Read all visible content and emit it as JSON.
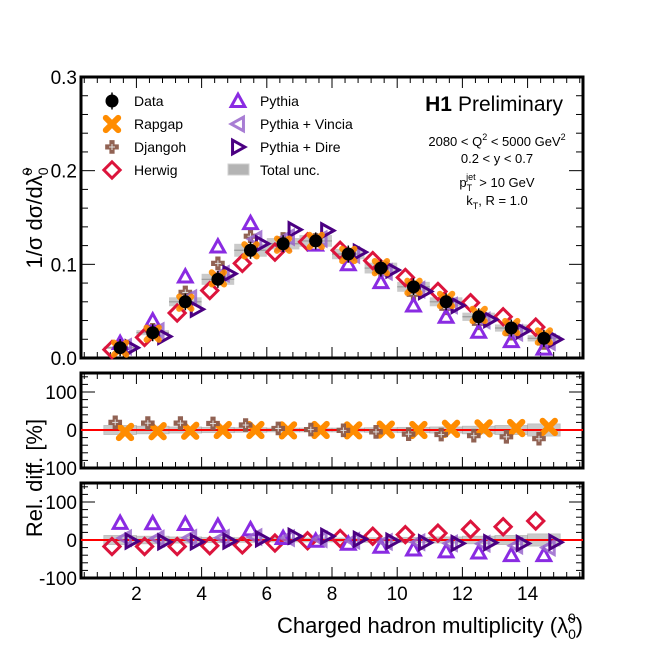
{
  "chart_data": [
    {
      "panel": "main",
      "type": "scatter",
      "ylabel": "1/σ dσ/dλ̃",
      "ylabel_super": "0",
      "ylabel_sub": "0",
      "ylim": [
        0.0,
        0.3
      ],
      "xlim": [
        0.3,
        15.7
      ],
      "yticks": [
        0.0,
        0.1,
        0.2,
        0.3
      ],
      "ytick_labels": [
        "0.0",
        "0.1",
        "0.2",
        "0.3"
      ],
      "x": [
        1.5,
        2.5,
        3.5,
        4.5,
        5.5,
        6.5,
        7.5,
        8.5,
        9.5,
        10.5,
        11.5,
        12.5,
        13.5,
        14.5
      ],
      "series": [
        {
          "name": "Data",
          "marker": "circle",
          "color": "#000000",
          "values": [
            0.011,
            0.027,
            0.06,
            0.084,
            0.115,
            0.122,
            0.125,
            0.111,
            0.096,
            0.076,
            0.06,
            0.044,
            0.032,
            0.021
          ]
        },
        {
          "name": "Rapgap",
          "marker": "x-cross",
          "color": "#ff8c00",
          "values": [
            0.01,
            0.026,
            0.059,
            0.085,
            0.115,
            0.121,
            0.125,
            0.11,
            0.097,
            0.076,
            0.062,
            0.046,
            0.033,
            0.023
          ]
        },
        {
          "name": "Djangoh",
          "marker": "plus",
          "color": "#8b5a4a",
          "values": [
            0.013,
            0.03,
            0.07,
            0.101,
            0.13,
            0.127,
            0.126,
            0.109,
            0.092,
            0.068,
            0.053,
            0.037,
            0.026,
            0.016
          ]
        },
        {
          "name": "Herwig",
          "marker": "diamond",
          "color": "#dc143c",
          "values": [
            0.009,
            0.022,
            0.048,
            0.072,
            0.101,
            0.113,
            0.124,
            0.115,
            0.104,
            0.086,
            0.071,
            0.059,
            0.044,
            0.033
          ]
        },
        {
          "name": "Pythia",
          "marker": "triangle-up",
          "color": "#8a2be2",
          "values": [
            0.016,
            0.04,
            0.087,
            0.119,
            0.144,
            0.121,
            0.121,
            0.1,
            0.081,
            0.056,
            0.044,
            0.028,
            0.018,
            0.01
          ]
        },
        {
          "name": "Pythia + Vincia",
          "marker": "triangle-left",
          "color": "#9966cc",
          "values": [
            0.012,
            0.029,
            0.064,
            0.09,
            0.127,
            0.129,
            0.127,
            0.11,
            0.092,
            0.073,
            0.056,
            0.04,
            0.027,
            0.017
          ]
        },
        {
          "name": "Pythia + Dire",
          "marker": "triangle-right",
          "color": "#4b0082",
          "values": [
            0.011,
            0.023,
            0.052,
            0.09,
            0.122,
            0.137,
            0.136,
            0.113,
            0.094,
            0.071,
            0.056,
            0.041,
            0.029,
            0.02
          ]
        }
      ],
      "uncertainty_band": {
        "name": "Total unc.",
        "color": "#b4b4b4",
        "rel": [
          0.12,
          0.1,
          0.08,
          0.07,
          0.06,
          0.05,
          0.05,
          0.05,
          0.06,
          0.07,
          0.08,
          0.1,
          0.12,
          0.16
        ]
      },
      "legend_location": "top-left",
      "legend": [
        "Data",
        "Rapgap",
        "Djangoh",
        "Herwig",
        "Pythia",
        "Pythia + Vincia",
        "Pythia + Dire",
        "Total unc."
      ],
      "annotations": {
        "experiment": "H1",
        "status": "Preliminary",
        "lines": [
          "2080 < Q² < 5000 GeV²",
          "0.2 < y < 0.7",
          "p_T^jet > 10 GeV",
          "k_T, R = 1.0"
        ]
      }
    },
    {
      "panel": "ratio-1",
      "type": "scatter",
      "ylabel": "Rel. diff. [%]",
      "ylim": [
        -100,
        150
      ],
      "yticks": [
        -100,
        0,
        100
      ],
      "ytick_labels": [
        "-100",
        "0",
        "100"
      ],
      "reference_line": 0,
      "x": [
        1.5,
        2.5,
        3.5,
        4.5,
        5.5,
        6.5,
        7.5,
        8.5,
        9.5,
        10.5,
        11.5,
        12.5,
        13.5,
        14.5
      ],
      "series": [
        {
          "name": "Rapgap",
          "values": [
            -5,
            -3,
            -2,
            0,
            0,
            -1,
            0,
            -1,
            1,
            0,
            3,
            4,
            5,
            8
          ]
        },
        {
          "name": "Djangoh",
          "values": [
            20,
            18,
            18,
            17,
            13,
            4,
            1,
            -1,
            -5,
            -11,
            -12,
            -15,
            -18,
            -23
          ]
        }
      ],
      "uncertainty_band": {
        "rel": [
          12,
          10,
          8,
          7,
          6,
          5,
          5,
          5,
          6,
          7,
          8,
          10,
          12,
          16
        ]
      }
    },
    {
      "panel": "ratio-2",
      "type": "scatter",
      "ylim": [
        -100,
        150
      ],
      "yticks": [
        -100,
        0,
        100
      ],
      "ytick_labels": [
        "-100",
        "0",
        "100"
      ],
      "xticks": [
        2,
        4,
        6,
        8,
        10,
        12,
        14
      ],
      "xtick_labels": [
        "2",
        "4",
        "6",
        "8",
        "10",
        "12",
        "14"
      ],
      "xlabel": "Charged hadron multiplicity (λ̃",
      "xlabel_super": "0",
      "xlabel_sub": "0",
      "xlabel_end": ")",
      "reference_line": 0,
      "x": [
        1.5,
        2.5,
        3.5,
        4.5,
        5.5,
        6.5,
        7.5,
        8.5,
        9.5,
        10.5,
        11.5,
        12.5,
        13.5,
        14.5
      ],
      "series": [
        {
          "name": "Herwig",
          "values": [
            -17,
            -17,
            -17,
            -15,
            -13,
            -8,
            -2,
            4,
            10,
            14,
            18,
            28,
            35,
            50
          ]
        },
        {
          "name": "Pythia",
          "values": [
            45,
            44,
            42,
            37,
            28,
            5,
            -2,
            -10,
            -18,
            -25,
            -30,
            -33,
            -40,
            -40
          ]
        },
        {
          "name": "Pythia + Vincia",
          "values": [
            5,
            4,
            6,
            6,
            8,
            5,
            2,
            -2,
            -5,
            -6,
            -9,
            -10,
            -15,
            -20
          ]
        },
        {
          "name": "Pythia + Dire",
          "values": [
            -3,
            -5,
            -5,
            -3,
            3,
            10,
            10,
            2,
            -3,
            -7,
            -9,
            -7,
            -9,
            -6
          ]
        }
      ]
    }
  ],
  "style": {
    "reference_line_color": "#ff0000",
    "band_color": "#b4b4b4"
  }
}
